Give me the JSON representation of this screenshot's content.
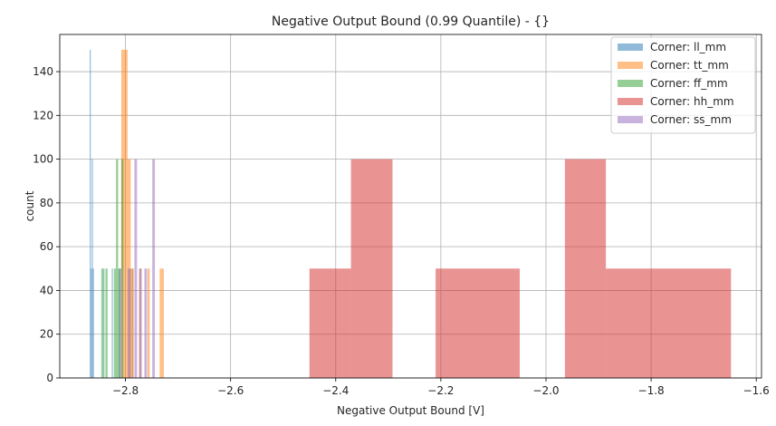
{
  "chart_data": {
    "type": "bar",
    "title": "Negative Output Bound (0.99 Quantile) - {}",
    "xlabel": "Negative Output Bound [V]",
    "ylabel": "count",
    "xlim": [
      -2.925,
      -1.59
    ],
    "ylim": [
      0,
      157
    ],
    "xticks": [
      -2.8,
      -2.6,
      -2.4,
      -2.2,
      -2.0,
      -1.8,
      -1.6
    ],
    "yticks": [
      0,
      20,
      40,
      60,
      80,
      100,
      120,
      140
    ],
    "grid": true,
    "legend_position": "top-right",
    "series": [
      {
        "name": "Corner: ll_mm",
        "color": "#1f77b4",
        "bars": [
          {
            "x0": -2.868,
            "x1": -2.866,
            "value": 150
          },
          {
            "x0": -2.866,
            "x1": -2.864,
            "value": 50
          },
          {
            "x0": -2.864,
            "x1": -2.862,
            "value": 100
          },
          {
            "x0": -2.862,
            "x1": -2.86,
            "value": 50
          },
          {
            "x0": -2.842,
            "x1": -2.84,
            "value": 50
          },
          {
            "x0": -2.826,
            "x1": -2.824,
            "value": 50
          },
          {
            "x0": -2.812,
            "x1": -2.81,
            "value": 50
          },
          {
            "x0": -2.792,
            "x1": -2.79,
            "value": 50
          },
          {
            "x0": -2.788,
            "x1": -2.786,
            "value": 50
          }
        ]
      },
      {
        "name": "Corner: tt_mm",
        "color": "#ff7f0e",
        "bars": [
          {
            "x0": -2.808,
            "x1": -2.796,
            "value": 150
          },
          {
            "x0": -2.796,
            "x1": -2.79,
            "value": 100
          },
          {
            "x0": -2.79,
            "x1": -2.784,
            "value": 50
          },
          {
            "x0": -2.774,
            "x1": -2.77,
            "value": 50
          },
          {
            "x0": -2.758,
            "x1": -2.754,
            "value": 50
          },
          {
            "x0": -2.735,
            "x1": -2.727,
            "value": 50
          }
        ]
      },
      {
        "name": "Corner: ff_mm",
        "color": "#2ca02c",
        "bars": [
          {
            "x0": -2.846,
            "x1": -2.842,
            "value": 50
          },
          {
            "x0": -2.838,
            "x1": -2.834,
            "value": 50
          },
          {
            "x0": -2.822,
            "x1": -2.818,
            "value": 50
          },
          {
            "x0": -2.818,
            "x1": -2.814,
            "value": 100
          },
          {
            "x0": -2.814,
            "x1": -2.81,
            "value": 50
          },
          {
            "x0": -2.808,
            "x1": -2.804,
            "value": 100
          }
        ]
      },
      {
        "name": "Corner: hh_mm",
        "color": "#d62728",
        "bars": [
          {
            "x0": -2.45,
            "x1": -2.371,
            "value": 50
          },
          {
            "x0": -2.371,
            "x1": -2.292,
            "value": 100
          },
          {
            "x0": -2.21,
            "x1": -2.05,
            "value": 50
          },
          {
            "x0": -1.964,
            "x1": -1.886,
            "value": 100
          },
          {
            "x0": -1.886,
            "x1": -1.648,
            "value": 50
          }
        ]
      },
      {
        "name": "Corner: ss_mm",
        "color": "#9467bd",
        "bars": [
          {
            "x0": -2.812,
            "x1": -2.808,
            "value": 50
          },
          {
            "x0": -2.796,
            "x1": -2.791,
            "value": 50
          },
          {
            "x0": -2.783,
            "x1": -2.778,
            "value": 100
          },
          {
            "x0": -2.774,
            "x1": -2.769,
            "value": 50
          },
          {
            "x0": -2.764,
            "x1": -2.759,
            "value": 50
          },
          {
            "x0": -2.749,
            "x1": -2.744,
            "value": 100
          }
        ]
      }
    ]
  }
}
